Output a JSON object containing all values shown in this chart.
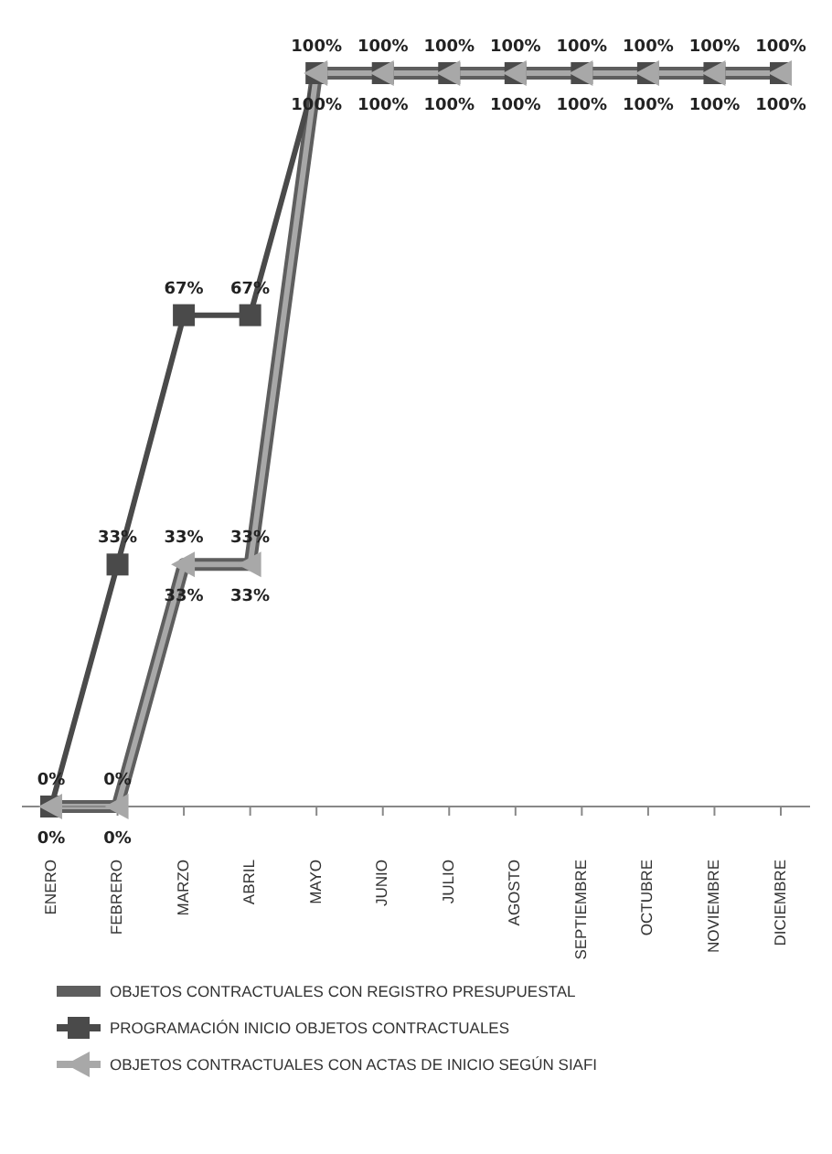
{
  "chart_data": {
    "type": "line",
    "categories": [
      "ENERO",
      "FEBRERO",
      "MARZO",
      "ABRIL",
      "MAYO",
      "JUNIO",
      "JULIO",
      "AGOSTO",
      "SEPTIEMBRE",
      "OCTUBRE",
      "NOVIEMBRE",
      "DICIEMBRE"
    ],
    "series": [
      {
        "name": "OBJETOS CONTRACTUALES CON REGISTRO PRESUPUESTAL",
        "color": "#5e5e5e",
        "marker": "none",
        "values": [
          0,
          0,
          33,
          33,
          100,
          100,
          100,
          100,
          100,
          100,
          100,
          100
        ],
        "value_labels": [
          "0%",
          "0%",
          "33%",
          "33%",
          "100%",
          "100%",
          "100%",
          "100%",
          "100%",
          "100%",
          "100%",
          "100%"
        ]
      },
      {
        "name": "PROGRAMACIÓN INICIO OBJETOS CONTRACTUALES",
        "color": "#4a4a4a",
        "marker": "square",
        "values": [
          0,
          33,
          67,
          67,
          100,
          100,
          100,
          100,
          100,
          100,
          100,
          100
        ],
        "value_labels": [
          "0%",
          "33%",
          "67%",
          "67%",
          "100%",
          "100%",
          "100%",
          "100%",
          "100%",
          "100%",
          "100%",
          "100%"
        ]
      },
      {
        "name": "OBJETOS CONTRACTUALES CON ACTAS DE INICIO SEGÚN  SIAFI",
        "color": "#a8a8a8",
        "marker": "triangle",
        "values": [
          0,
          0,
          33,
          33,
          100,
          100,
          100,
          100,
          100,
          100,
          100,
          100
        ],
        "value_labels": [
          null,
          "0%",
          "33%",
          "33%",
          null,
          null,
          null,
          null,
          null,
          null,
          null,
          null
        ]
      }
    ],
    "data_labels": false,
    "legend": "bottom",
    "grid": false
  }
}
